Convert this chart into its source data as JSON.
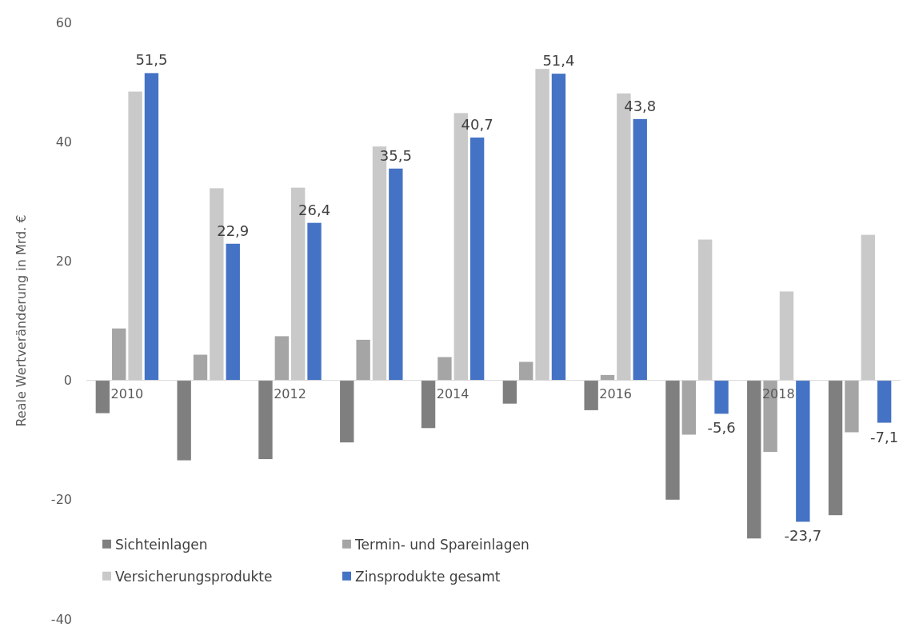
{
  "chart_data": {
    "type": "bar",
    "ylabel": "Reale Wertveränderung in Mrd. €",
    "categories": [
      "2010",
      null,
      "2012",
      null,
      "2014",
      null,
      "2016",
      null,
      "2018",
      null
    ],
    "series": [
      {
        "name": "Sichteinlagen",
        "color": "#7f7f7f",
        "values": [
          -5.5,
          -13.4,
          -13.2,
          -10.4,
          -8.0,
          -3.9,
          -5.0,
          -20.0,
          -26.5,
          -22.6
        ]
      },
      {
        "name": "Termin- und Spareinlagen",
        "color": "#a5a5a5",
        "values": [
          8.7,
          4.3,
          7.4,
          6.8,
          3.9,
          3.1,
          0.9,
          -9.1,
          -12.0,
          -8.7
        ]
      },
      {
        "name": "Versicherungsprodukte",
        "color": "#c9c9c9",
        "values": [
          48.4,
          32.2,
          32.3,
          39.2,
          44.8,
          52.2,
          48.1,
          23.6,
          14.9,
          24.4
        ]
      },
      {
        "name": "Zinsprodukte gesamt",
        "color": "#4472c4",
        "values": [
          51.5,
          22.9,
          26.4,
          35.5,
          40.7,
          51.4,
          43.8,
          -5.6,
          -23.7,
          -7.1
        ],
        "value_labels": [
          "51,5",
          "22,9",
          "26,4",
          "35,5",
          "40,7",
          "51,4",
          "43,8",
          "-5,6",
          "-23,7",
          "-7,1"
        ]
      }
    ],
    "ylim": [
      -40,
      60
    ],
    "yticks": [
      -40,
      -20,
      0,
      20,
      40,
      60
    ],
    "grid": false,
    "legend": "bottom left"
  }
}
